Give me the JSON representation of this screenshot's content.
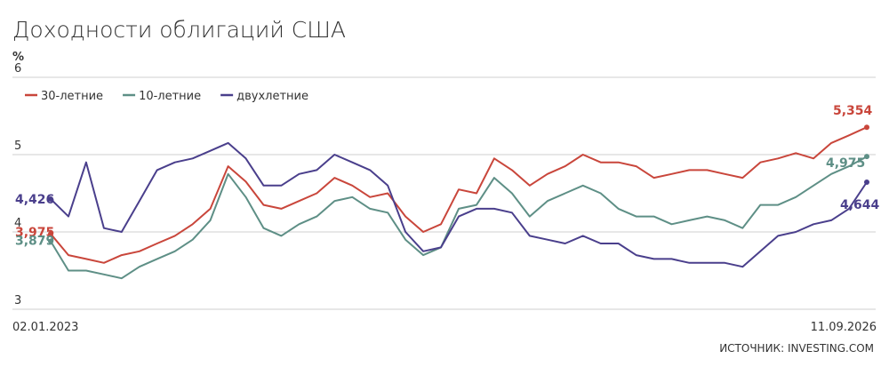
{
  "chart_data": {
    "type": "line",
    "title": "Доходности облигаций США",
    "y_label": "%",
    "source": "ИСТОЧНИК: INVESTING.COM",
    "categories": [
      "02.01.2023",
      null,
      null,
      null,
      null,
      null,
      null,
      null,
      null,
      null,
      null,
      null,
      null,
      null,
      null,
      null,
      null,
      null,
      null,
      null,
      null,
      null,
      null,
      null,
      null,
      null,
      null,
      null,
      null,
      null,
      null,
      null,
      null,
      null,
      null,
      null,
      null,
      null,
      null,
      null,
      null,
      null,
      null,
      null,
      null,
      null,
      "11.09.2026"
    ],
    "ylim": [
      3,
      6
    ],
    "yticks": [
      3,
      4,
      5,
      6
    ],
    "grid": true,
    "legend": "top-left",
    "series": [
      {
        "name": "30-летние",
        "color": "#c9463b",
        "values": [
          3.975,
          3.7,
          3.65,
          3.6,
          3.7,
          3.75,
          3.85,
          3.95,
          4.1,
          4.3,
          4.85,
          4.65,
          4.35,
          4.3,
          4.4,
          4.5,
          4.7,
          4.6,
          4.45,
          4.5,
          4.2,
          4.0,
          4.1,
          4.55,
          4.5,
          4.95,
          4.8,
          4.6,
          4.75,
          4.85,
          5.0,
          4.9,
          4.9,
          4.85,
          4.7,
          4.75,
          4.8,
          4.8,
          4.75,
          4.7,
          4.9,
          4.95,
          5.02,
          4.95,
          5.15,
          5.25,
          5.354
        ],
        "value_labels": [
          "3,975",
          null,
          null,
          null,
          null,
          null,
          null,
          null,
          null,
          null,
          null,
          null,
          null,
          null,
          null,
          null,
          null,
          null,
          null,
          null,
          null,
          null,
          null,
          null,
          null,
          null,
          null,
          null,
          null,
          null,
          null,
          null,
          null,
          null,
          null,
          null,
          null,
          null,
          null,
          null,
          null,
          null,
          null,
          null,
          null,
          null,
          "5,354"
        ]
      },
      {
        "name": "10-летние",
        "color": "#5e8f86",
        "values": [
          3.879,
          3.5,
          3.5,
          3.45,
          3.4,
          3.55,
          3.65,
          3.75,
          3.9,
          4.15,
          4.75,
          4.45,
          4.05,
          3.95,
          4.1,
          4.2,
          4.4,
          4.45,
          4.3,
          4.25,
          3.9,
          3.7,
          3.8,
          4.3,
          4.35,
          4.7,
          4.5,
          4.2,
          4.4,
          4.5,
          4.6,
          4.5,
          4.3,
          4.2,
          4.2,
          4.1,
          4.15,
          4.2,
          4.15,
          4.05,
          4.35,
          4.35,
          4.45,
          4.6,
          4.75,
          4.85,
          4.975
        ],
        "value_labels": [
          "3,879",
          null,
          null,
          null,
          null,
          null,
          null,
          null,
          null,
          null,
          null,
          null,
          null,
          null,
          null,
          null,
          null,
          null,
          null,
          null,
          null,
          null,
          null,
          null,
          null,
          null,
          null,
          null,
          null,
          null,
          null,
          null,
          null,
          null,
          null,
          null,
          null,
          null,
          null,
          null,
          null,
          null,
          null,
          null,
          null,
          null,
          "4,975"
        ]
      },
      {
        "name": "двухлетние",
        "color": "#4a3f8c",
        "values": [
          4.426,
          4.2,
          4.9,
          4.05,
          4.0,
          4.4,
          4.8,
          4.9,
          4.95,
          5.05,
          5.15,
          4.95,
          4.6,
          4.6,
          4.75,
          4.8,
          5.0,
          4.9,
          4.8,
          4.6,
          4.0,
          3.75,
          3.8,
          4.2,
          4.3,
          4.3,
          4.25,
          3.95,
          3.9,
          3.85,
          3.95,
          3.85,
          3.85,
          3.7,
          3.65,
          3.65,
          3.6,
          3.6,
          3.6,
          3.55,
          3.75,
          3.95,
          4.0,
          4.1,
          4.15,
          4.3,
          4.644
        ],
        "value_labels": [
          "4,426",
          null,
          null,
          null,
          null,
          null,
          null,
          null,
          null,
          null,
          null,
          null,
          null,
          null,
          null,
          null,
          null,
          null,
          null,
          null,
          null,
          null,
          null,
          null,
          null,
          null,
          null,
          null,
          null,
          null,
          null,
          null,
          null,
          null,
          null,
          null,
          null,
          null,
          null,
          null,
          null,
          null,
          null,
          null,
          null,
          null,
          "4,644"
        ]
      }
    ]
  }
}
